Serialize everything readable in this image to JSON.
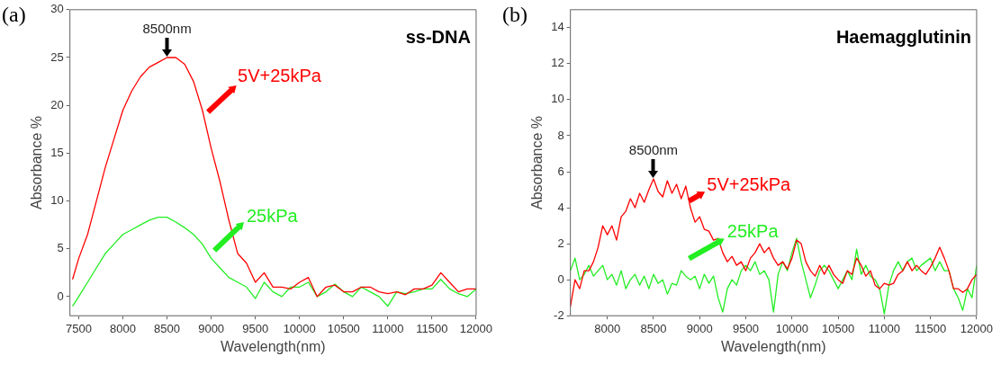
{
  "chart_data": [
    {
      "type": "line",
      "title": "(a)",
      "xlabel": "Wavelength(nm)",
      "ylabel": "Absorbance %",
      "xlim": [
        7400,
        12000
      ],
      "ylim": [
        -2,
        30
      ],
      "xticks": [
        7500,
        8000,
        8500,
        9000,
        9500,
        10000,
        10500,
        11000,
        11500,
        12000
      ],
      "yticks": [
        0,
        5,
        10,
        15,
        20,
        25,
        30
      ],
      "annotations": [
        "ss-DNA",
        {
          "text": "8500nm",
          "x": 8500,
          "y": 25
        }
      ],
      "x": [
        7430,
        7500,
        7600,
        7700,
        7800,
        7900,
        8000,
        8100,
        8200,
        8300,
        8400,
        8500,
        8600,
        8700,
        8800,
        8900,
        9000,
        9100,
        9200,
        9300,
        9400,
        9500,
        9600,
        9700,
        9800,
        9900,
        10000,
        10100,
        10200,
        10300,
        10400,
        10500,
        10600,
        10700,
        10800,
        10900,
        11000,
        11100,
        11200,
        11300,
        11400,
        11500,
        11600,
        11700,
        11800,
        11900,
        12000
      ],
      "series": [
        {
          "name": "5V+25kPa",
          "color": "#ff0000",
          "values": [
            1.8,
            4,
            6.5,
            10,
            13.5,
            16.5,
            19.5,
            21.5,
            23,
            24,
            24.5,
            25,
            25,
            24.3,
            22.5,
            19.5,
            15.5,
            12,
            8,
            4.5,
            3.5,
            1.5,
            2.5,
            1,
            1,
            0.8,
            1.5,
            2,
            0,
            1,
            1.2,
            0.5,
            0.5,
            1,
            1,
            0.5,
            0.3,
            0.5,
            0.2,
            0.8,
            0.8,
            1.2,
            2.5,
            1.5,
            0.5,
            0.8,
            0.8
          ]
        },
        {
          "name": "25kPa",
          "color": "#22ee22",
          "values": [
            -1,
            0,
            1.5,
            3,
            4.5,
            5.5,
            6.5,
            7,
            7.5,
            8,
            8.3,
            8.3,
            7.8,
            7.2,
            6.5,
            5.5,
            4,
            3,
            2,
            1.5,
            1,
            -0.2,
            1.5,
            0.5,
            0,
            1,
            1,
            1.5,
            0,
            0.5,
            1.3,
            0.5,
            0,
            1,
            0.5,
            0,
            -1,
            0.5,
            0.3,
            0.5,
            0.8,
            0.8,
            1.8,
            0.8,
            0.3,
            0,
            0.8
          ]
        }
      ]
    },
    {
      "type": "line",
      "title": "(b)",
      "xlabel": "Wavelength(nm)",
      "ylabel": "Absorbance %",
      "xlim": [
        7600,
        12000
      ],
      "ylim": [
        -2,
        15
      ],
      "xticks": [
        8000,
        8500,
        9000,
        9500,
        10000,
        10500,
        11000,
        11500,
        12000
      ],
      "yticks": [
        -2,
        0,
        2,
        4,
        6,
        8,
        10,
        12,
        14
      ],
      "annotations": [
        "Haemagglutinin",
        {
          "text": "8500nm",
          "x": 8500,
          "y": 5.6
        }
      ],
      "x": [
        7600,
        7650,
        7700,
        7750,
        7800,
        7850,
        7900,
        7950,
        8000,
        8050,
        8100,
        8150,
        8200,
        8250,
        8300,
        8350,
        8400,
        8450,
        8500,
        8550,
        8600,
        8650,
        8700,
        8750,
        8800,
        8850,
        8900,
        8950,
        9000,
        9050,
        9100,
        9150,
        9200,
        9250,
        9300,
        9350,
        9400,
        9450,
        9500,
        9550,
        9600,
        9650,
        9700,
        9750,
        9800,
        9850,
        9900,
        9950,
        10000,
        10050,
        10100,
        10150,
        10200,
        10250,
        10300,
        10350,
        10400,
        10450,
        10500,
        10550,
        10600,
        10650,
        10700,
        10750,
        10800,
        10850,
        10900,
        10950,
        11000,
        11050,
        11100,
        11150,
        11200,
        11250,
        11300,
        11350,
        11400,
        11450,
        11500,
        11550,
        11600,
        11650,
        11700,
        11750,
        11800,
        11850,
        11900,
        11950,
        12000
      ],
      "series": [
        {
          "name": "5V+25kPa",
          "color": "#ff0000",
          "values": [
            -1.5,
            0,
            -0.5,
            0.5,
            0.5,
            1,
            1.8,
            3,
            2.5,
            3,
            2.2,
            3.5,
            3.8,
            4.5,
            4,
            4.8,
            4.3,
            5,
            5.6,
            4.9,
            4.6,
            5.5,
            4.8,
            5.3,
            4.5,
            5.2,
            4,
            3.2,
            3.5,
            2.8,
            2.7,
            2.2,
            2.3,
            1.5,
            1,
            1.3,
            0.8,
            1,
            0.5,
            1.2,
            1.5,
            2,
            1.5,
            1.8,
            1.2,
            0.8,
            1,
            0.6,
            1.2,
            2.2,
            2,
            1,
            0.5,
            0.2,
            0.8,
            0.3,
            0.8,
            0.3,
            0,
            -0.2,
            0.5,
            0.3,
            1.2,
            0.8,
            0.2,
            0.5,
            -0.3,
            -0.5,
            -0.2,
            -0.3,
            -0.2,
            0.3,
            0.5,
            1,
            0.5,
            0.8,
            0.5,
            0.3,
            0.7,
            1.2,
            1.8,
            1.2,
            0.5,
            -0.5,
            -0.5,
            -0.7,
            -0.5,
            0,
            0.3
          ]
        },
        {
          "name": "25kPa",
          "color": "#22ee22",
          "values": [
            0.5,
            1.2,
            0,
            0.3,
            0.8,
            0.2,
            0.5,
            0.8,
            0,
            0.3,
            -0.3,
            0.5,
            -0.5,
            0,
            0.3,
            -0.3,
            0.2,
            -0.5,
            0.3,
            -0.2,
            0,
            -0.8,
            -0.2,
            -0.3,
            0.5,
            0.2,
            0,
            0.2,
            -0.5,
            0.3,
            -0.2,
            0.2,
            -1,
            -1.8,
            -0.5,
            0,
            -0.3,
            0.5,
            0.8,
            0.5,
            1,
            0.3,
            0.5,
            0,
            -1.8,
            0.3,
            1,
            0.5,
            1.5,
            2.3,
            1,
            0,
            -1,
            -0.3,
            0.5,
            0.8,
            0.5,
            0,
            -0.5,
            0,
            0.5,
            0,
            1.7,
            0.3,
            0.8,
            0.2,
            0,
            -0.5,
            -1.9,
            -0.3,
            0.5,
            1,
            0.5,
            1,
            1.2,
            0.5,
            0.8,
            1,
            1.2,
            0.5,
            1,
            0.5,
            0.5,
            -0.5,
            -1,
            -1.7,
            -0.5,
            -1,
            0.8
          ]
        }
      ]
    }
  ]
}
